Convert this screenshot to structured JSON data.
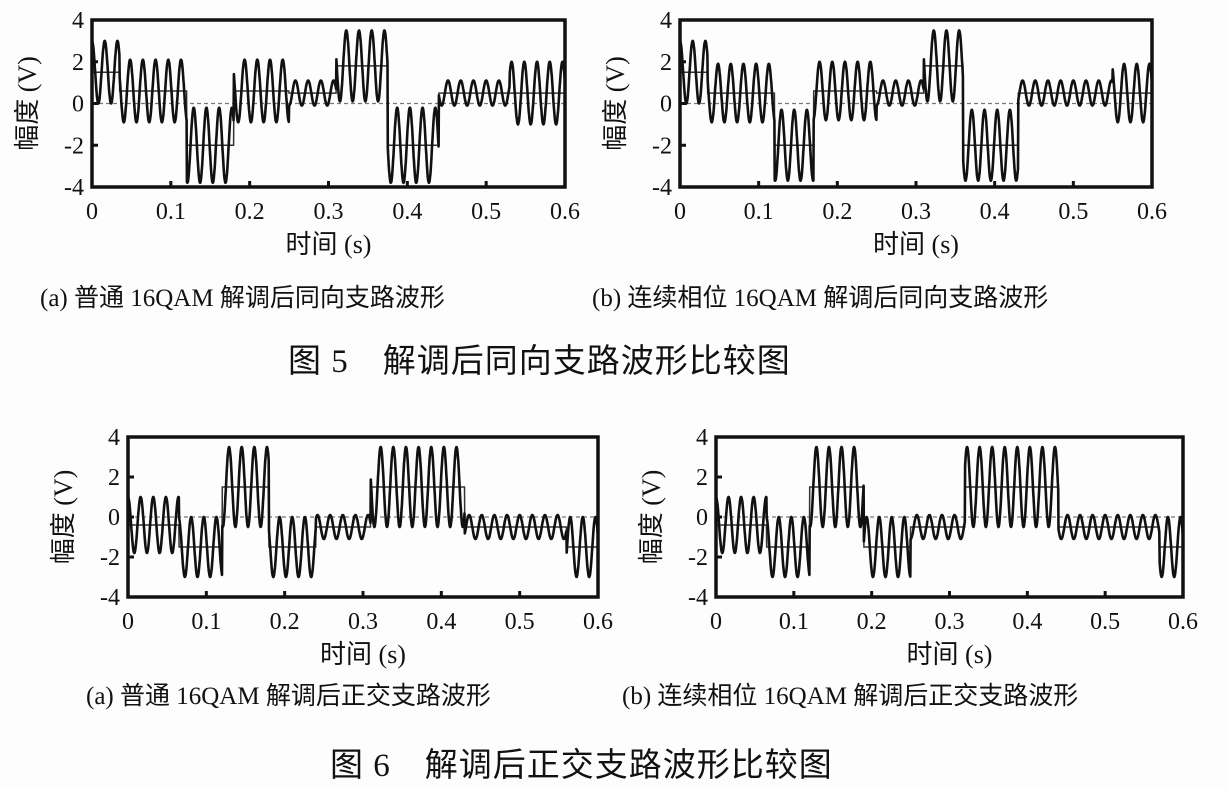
{
  "figures": [
    {
      "title": "图 5　解调后同向支路波形比较图",
      "captions": [
        "(a) 普通 16QAM 解调后同向支路波形",
        "(b) 连续相位 16QAM 解调后同向支路波形"
      ]
    },
    {
      "title": "图 6　解调后正交支路波形比较图",
      "captions": [
        "(a) 普通 16QAM 解调后正交支路波形",
        "(b) 连续相位 16QAM 解调后正交支路波形"
      ]
    }
  ],
  "chart_data": [
    {
      "type": "line",
      "xlabel": "时间 (s)",
      "ylabel": "幅度 (V)",
      "xlim": [
        0,
        0.6
      ],
      "ylim": [
        -4,
        4
      ],
      "xticks": [
        "0",
        "0.1",
        "0.2",
        "0.3",
        "0.4",
        "0.5",
        "0.6"
      ],
      "yticks": [
        "4",
        "2",
        "0",
        "-2",
        "-4"
      ],
      "segments": [
        {
          "t": [
            0,
            0.035
          ],
          "level": 1.5,
          "amplitude": 1.5
        },
        {
          "t": [
            0.035,
            0.12
          ],
          "level": 0.6,
          "amplitude": 1.5
        },
        {
          "t": [
            0.12,
            0.18
          ],
          "level": -2,
          "amplitude": 1.8
        },
        {
          "t": [
            0.18,
            0.25
          ],
          "level": 0.6,
          "amplitude": 1.5
        },
        {
          "t": [
            0.25,
            0.31
          ],
          "level": 0.5,
          "amplitude": 0.6
        },
        {
          "t": [
            0.31,
            0.375
          ],
          "level": 1.8,
          "amplitude": 1.7
        },
        {
          "t": [
            0.375,
            0.44
          ],
          "level": -2,
          "amplitude": 1.8
        },
        {
          "t": [
            0.44,
            0.53
          ],
          "level": 0.5,
          "amplitude": 0.6
        },
        {
          "t": [
            0.53,
            0.6
          ],
          "level": 0.5,
          "amplitude": 1.5
        }
      ]
    },
    {
      "type": "line",
      "xlabel": "时间 (s)",
      "ylabel": "幅度 (V)",
      "xlim": [
        0,
        0.6
      ],
      "ylim": [
        -4,
        4
      ],
      "xticks": [
        "0",
        "0.1",
        "0.2",
        "0.3",
        "0.4",
        "0.5",
        "0.6"
      ],
      "yticks": [
        "4",
        "2",
        "0",
        "-2",
        "-4"
      ],
      "segments": [
        {
          "t": [
            0,
            0.035
          ],
          "level": 1.5,
          "amplitude": 1.5
        },
        {
          "t": [
            0.035,
            0.12
          ],
          "level": 0.5,
          "amplitude": 1.4
        },
        {
          "t": [
            0.12,
            0.17
          ],
          "level": -2,
          "amplitude": 1.7
        },
        {
          "t": [
            0.17,
            0.25
          ],
          "level": 0.6,
          "amplitude": 1.4
        },
        {
          "t": [
            0.25,
            0.31
          ],
          "level": 0.5,
          "amplitude": 0.6
        },
        {
          "t": [
            0.31,
            0.36
          ],
          "level": 1.8,
          "amplitude": 1.7
        },
        {
          "t": [
            0.36,
            0.43
          ],
          "level": -2,
          "amplitude": 1.7
        },
        {
          "t": [
            0.43,
            0.55
          ],
          "level": 0.5,
          "amplitude": 0.6
        },
        {
          "t": [
            0.55,
            0.6
          ],
          "level": 0.5,
          "amplitude": 1.4
        }
      ]
    },
    {
      "type": "line",
      "xlabel": "时间 (s)",
      "ylabel": "幅度 (V)",
      "xlim": [
        0,
        0.6
      ],
      "ylim": [
        -4,
        4
      ],
      "xticks": [
        "0",
        "0.1",
        "0.2",
        "0.3",
        "0.4",
        "0.5",
        "0.6"
      ],
      "yticks": [
        "4",
        "2",
        "0",
        "-2",
        "-4"
      ],
      "segments": [
        {
          "t": [
            0,
            0.065
          ],
          "level": -0.4,
          "amplitude": 1.4
        },
        {
          "t": [
            0.065,
            0.12
          ],
          "level": -1.5,
          "amplitude": 1.5
        },
        {
          "t": [
            0.12,
            0.18
          ],
          "level": 1.5,
          "amplitude": 2
        },
        {
          "t": [
            0.18,
            0.24
          ],
          "level": -1.5,
          "amplitude": 1.5
        },
        {
          "t": [
            0.24,
            0.31
          ],
          "level": -0.5,
          "amplitude": 0.6
        },
        {
          "t": [
            0.31,
            0.43
          ],
          "level": 1.5,
          "amplitude": 2
        },
        {
          "t": [
            0.43,
            0.56
          ],
          "level": -0.5,
          "amplitude": 0.6
        },
        {
          "t": [
            0.56,
            0.6
          ],
          "level": -1.5,
          "amplitude": 1.5
        }
      ]
    },
    {
      "type": "line",
      "xlabel": "时间 (s)",
      "ylabel": "幅度 (V)",
      "xlim": [
        0,
        0.6
      ],
      "ylim": [
        -4,
        4
      ],
      "xticks": [
        "0",
        "0.1",
        "0.2",
        "0.3",
        "0.4",
        "0.5",
        "0.6"
      ],
      "yticks": [
        "4",
        "2",
        "0",
        "-2",
        "-4"
      ],
      "segments": [
        {
          "t": [
            0,
            0.065
          ],
          "level": -0.4,
          "amplitude": 1.4
        },
        {
          "t": [
            0.065,
            0.12
          ],
          "level": -1.5,
          "amplitude": 1.5
        },
        {
          "t": [
            0.12,
            0.19
          ],
          "level": 1.5,
          "amplitude": 2
        },
        {
          "t": [
            0.19,
            0.25
          ],
          "level": -1.5,
          "amplitude": 1.5
        },
        {
          "t": [
            0.25,
            0.32
          ],
          "level": -0.5,
          "amplitude": 0.6
        },
        {
          "t": [
            0.32,
            0.44
          ],
          "level": 1.5,
          "amplitude": 2
        },
        {
          "t": [
            0.44,
            0.57
          ],
          "level": -0.5,
          "amplitude": 0.6
        },
        {
          "t": [
            0.57,
            0.6
          ],
          "level": -1.5,
          "amplitude": 1.5
        }
      ]
    }
  ]
}
